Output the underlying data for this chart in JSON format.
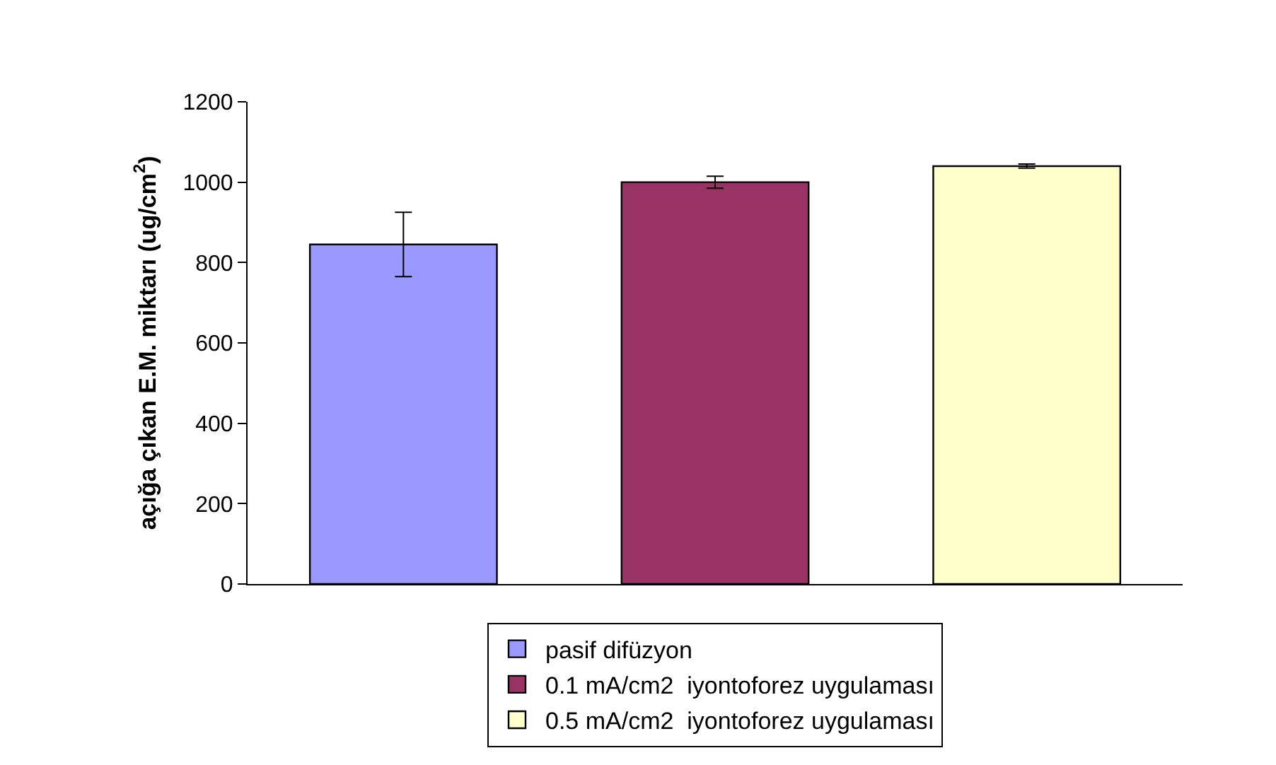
{
  "chart_data": {
    "type": "bar",
    "ylabel": "açığa çıkan E.M. miktarı (ug/cm$^{2}$)",
    "categories": [
      null,
      null,
      null
    ],
    "series": [
      {
        "name": "pasif difüzyon",
        "color": "#9999ff",
        "values": [
          845,
          null,
          null
        ],
        "errors": [
          80,
          null,
          null
        ]
      },
      {
        "name": "0.1 mA/cm2  iyontoforez uygulaması",
        "color": "#993366",
        "values": [
          null,
          1000,
          null
        ],
        "errors": [
          null,
          15,
          null
        ]
      },
      {
        "name": "0.5 mA/cm2  iyontoforez uygulaması",
        "color": "#ffffcc",
        "values": [
          null,
          null,
          1040
        ],
        "errors": [
          null,
          null,
          5
        ]
      }
    ],
    "ylim": [
      0,
      1200
    ],
    "yticks": [
      0,
      200,
      400,
      600,
      800,
      1000,
      1200
    ],
    "grid": false,
    "legend": "bottom"
  }
}
